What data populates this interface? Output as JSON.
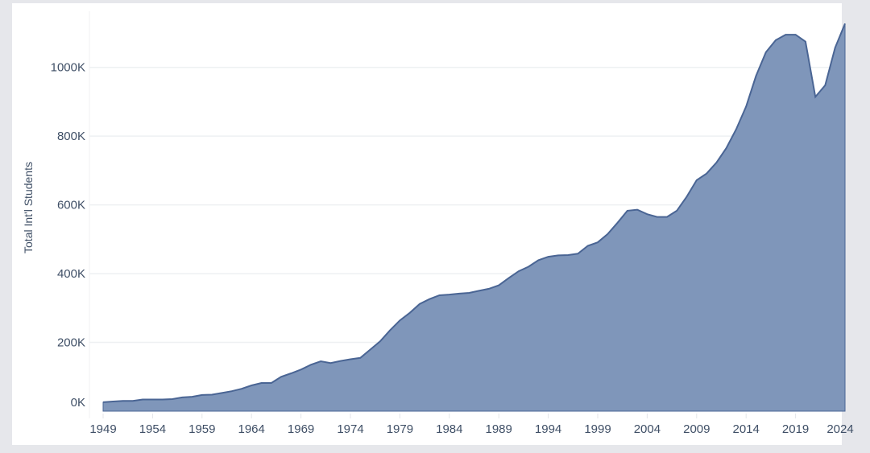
{
  "chart_data": {
    "type": "area",
    "title": "",
    "xlabel": "",
    "ylabel": "Total Int'l Students",
    "ylim": [
      0,
      1150000
    ],
    "xlim": [
      1949,
      2024
    ],
    "grid": true,
    "color": "#7f96ba",
    "line_color": "#4a6594",
    "y_ticks": [
      {
        "value": 0,
        "label": "0K"
      },
      {
        "value": 200000,
        "label": "200K"
      },
      {
        "value": 400000,
        "label": "400K"
      },
      {
        "value": 600000,
        "label": "600K"
      },
      {
        "value": 800000,
        "label": "800K"
      },
      {
        "value": 1000000,
        "label": "1000K"
      }
    ],
    "x_ticks": [
      "1949",
      "1954",
      "1959",
      "1964",
      "1969",
      "1974",
      "1979",
      "1984",
      "1989",
      "1994",
      "1999",
      "2004",
      "2009",
      "2014",
      "2019",
      "2024"
    ],
    "x": [
      1949,
      1950,
      1951,
      1952,
      1953,
      1954,
      1955,
      1956,
      1957,
      1958,
      1959,
      1960,
      1961,
      1962,
      1963,
      1964,
      1965,
      1966,
      1967,
      1968,
      1969,
      1970,
      1971,
      1972,
      1973,
      1974,
      1975,
      1976,
      1977,
      1978,
      1979,
      1980,
      1981,
      1982,
      1983,
      1984,
      1985,
      1986,
      1987,
      1988,
      1989,
      1990,
      1991,
      1992,
      1993,
      1994,
      1995,
      1996,
      1997,
      1998,
      1999,
      2000,
      2001,
      2002,
      2003,
      2004,
      2005,
      2006,
      2007,
      2008,
      2009,
      2010,
      2011,
      2012,
      2013,
      2014,
      2015,
      2016,
      2017,
      2018,
      2019,
      2020,
      2021,
      2022,
      2023,
      2024
    ],
    "values": [
      26000,
      28000,
      30000,
      30000,
      34000,
      34000,
      34000,
      35000,
      40000,
      42000,
      47000,
      48000,
      53000,
      58000,
      65000,
      75000,
      82000,
      82000,
      100000,
      110000,
      121000,
      135000,
      145000,
      140000,
      146000,
      151000,
      155000,
      179000,
      203000,
      235000,
      264000,
      286000,
      312000,
      326000,
      337000,
      339000,
      342000,
      344000,
      350000,
      356000,
      366000,
      387000,
      407000,
      420000,
      439000,
      449000,
      453000,
      454000,
      458000,
      481000,
      491000,
      515000,
      548000,
      583000,
      586000,
      573000,
      565000,
      565000,
      583000,
      624000,
      672000,
      691000,
      723000,
      765000,
      820000,
      886000,
      975000,
      1044000,
      1079000,
      1095000,
      1095000,
      1075000,
      914000,
      948000,
      1057000,
      1127000
    ]
  }
}
